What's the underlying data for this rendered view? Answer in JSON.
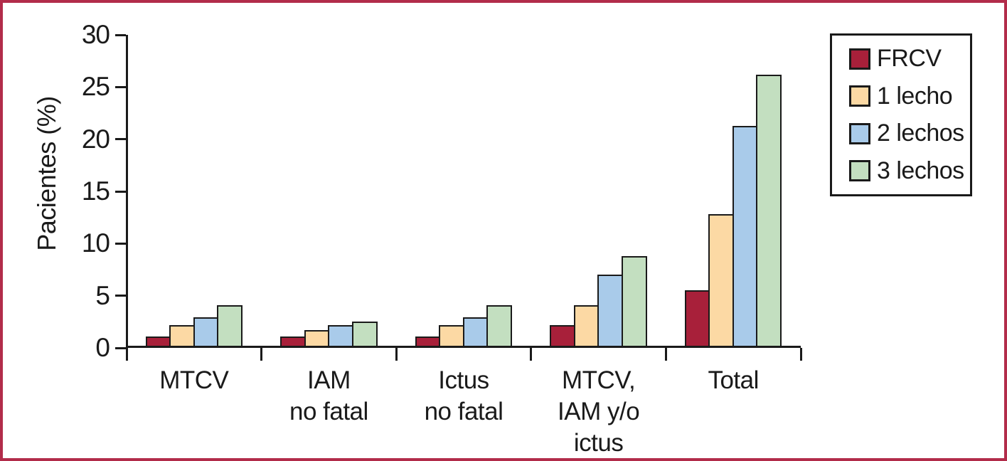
{
  "figure": {
    "border_color": "#b22c4a",
    "background": "#ffffff",
    "axis_color": "#1a1a1a",
    "text_color": "#1a1a1a"
  },
  "chart_data": {
    "type": "bar",
    "ylabel": "Pacientes (%)",
    "xlabel": "",
    "ylim": [
      0,
      30
    ],
    "yticks": [
      0,
      5,
      10,
      15,
      20,
      25,
      30
    ],
    "grid": false,
    "legend_position": "top-right",
    "bar_outline_color": "#1a1a1a",
    "categories": [
      [
        "MTCV"
      ],
      [
        "IAM",
        "no fatal"
      ],
      [
        "Ictus",
        "no fatal"
      ],
      [
        "MTCV,",
        "IAM y/o",
        "ictus"
      ],
      [
        "Total"
      ]
    ],
    "series": [
      {
        "name": "FRCV",
        "color": "#a8203a",
        "values": [
          1.1,
          1.1,
          1.1,
          2.2,
          5.5
        ]
      },
      {
        "name": "1 lecho",
        "color": "#fcd9a4",
        "values": [
          2.2,
          1.7,
          2.2,
          4.1,
          12.8
        ]
      },
      {
        "name": "2 lechos",
        "color": "#a9cbea",
        "values": [
          2.9,
          2.2,
          2.9,
          7.0,
          21.3
        ]
      },
      {
        "name": "3 lechos",
        "color": "#c3dfc0",
        "values": [
          4.1,
          2.5,
          4.1,
          8.8,
          26.2
        ]
      }
    ]
  }
}
